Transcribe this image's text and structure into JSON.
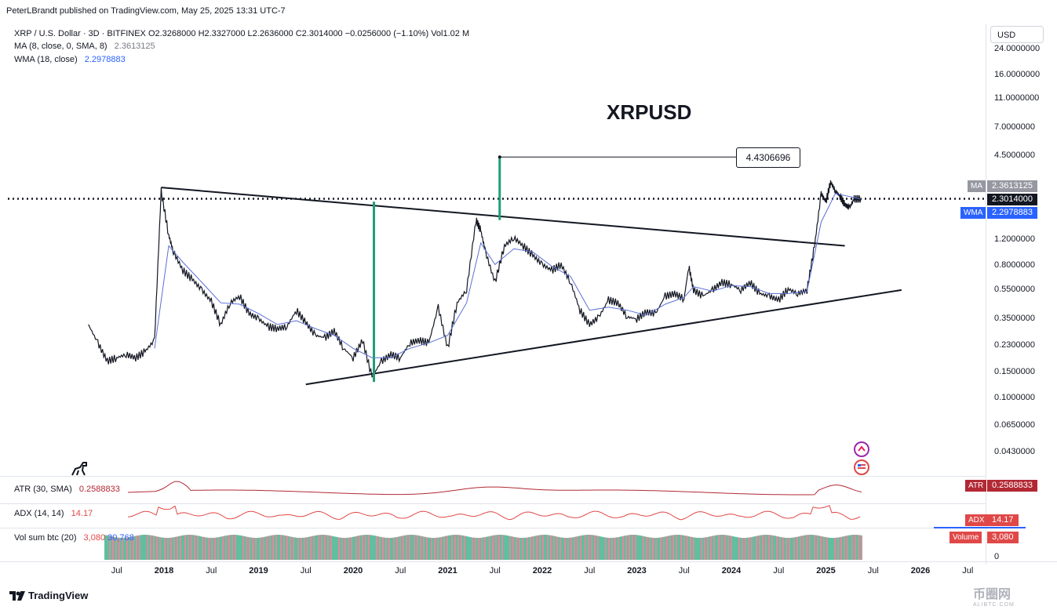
{
  "header": {
    "published": "PeterLBrandt published on TradingView.com, May 25, 2025 13:31 UTC-7"
  },
  "legend": {
    "symbol": "XRP / U.S. Dollar · 3D · BITFINEX",
    "ohlc": "O2.3268000  H2.3327000  L2.2636000  C2.3014000  −0.0256000 (−1.10%)  Vol1.02 M",
    "ma_label": "MA (8, close, 0, SMA, 8)",
    "ma_value": "2.3613125",
    "wma_label": "WMA (18, close)",
    "wma_value": "2.2978883"
  },
  "currency_button": "USD",
  "price_tags": {
    "ma_tag": "MA",
    "ma_value": "2.3613125",
    "close_value": "2.3014000",
    "wma_tag": "WMA",
    "wma_value": "2.2978883"
  },
  "measure_label": "4.4306696",
  "indicators": {
    "atr_label": "ATR (30, SMA)",
    "atr_value": "0.2588833",
    "atr_tag": "ATR",
    "adx_label": "ADX (14, 14)",
    "adx_value": "14.17",
    "adx_tag": "ADX",
    "vol_label": "Vol sum btc (20)",
    "vol_value1": "3,080",
    "vol_value2": "30,768",
    "vol_tag": "Volume",
    "vol_tag_value": "3,080",
    "vol_axis_zero": "0"
  },
  "footer": {
    "brand": "TradingView"
  },
  "watermark": {
    "main": "币圈网",
    "sub": "ALIBTC.COM"
  },
  "colors": {
    "price": "#131722",
    "wma": "#5b6fd6",
    "atr": "#b22833",
    "adx": "#e04848",
    "green_line": "#1f9e77",
    "volume_green": "#5fbfa0",
    "volume_red": "#e08a9a"
  },
  "chart_data": {
    "type": "line",
    "title": "XRPUSD",
    "scale": "log",
    "y_ticks": [
      "24.0000000",
      "16.0000000",
      "11.0000000",
      "7.0000000",
      "4.5000000",
      "1.2000000",
      "0.8000000",
      "0.5500000",
      "0.3500000",
      "0.2300000",
      "0.1500000",
      "0.1000000",
      "0.0650000",
      "0.0430000"
    ],
    "y_tick_values": [
      24,
      16,
      11,
      7,
      4.5,
      1.2,
      0.8,
      0.55,
      0.35,
      0.23,
      0.15,
      0.1,
      0.065,
      0.043
    ],
    "x_ticks": [
      {
        "label": "Jul",
        "t": 2017.5,
        "year": false
      },
      {
        "label": "2018",
        "t": 2018.0,
        "year": true
      },
      {
        "label": "Jul",
        "t": 2018.5,
        "year": false
      },
      {
        "label": "2019",
        "t": 2019.0,
        "year": true
      },
      {
        "label": "Jul",
        "t": 2019.5,
        "year": false
      },
      {
        "label": "2020",
        "t": 2020.0,
        "year": true
      },
      {
        "label": "Jul",
        "t": 2020.5,
        "year": false
      },
      {
        "label": "2021",
        "t": 2021.0,
        "year": true
      },
      {
        "label": "Jul",
        "t": 2021.5,
        "year": false
      },
      {
        "label": "2022",
        "t": 2022.0,
        "year": true
      },
      {
        "label": "Jul",
        "t": 2022.5,
        "year": false
      },
      {
        "label": "2023",
        "t": 2023.0,
        "year": true
      },
      {
        "label": "Jul",
        "t": 2023.5,
        "year": false
      },
      {
        "label": "2024",
        "t": 2024.0,
        "year": true
      },
      {
        "label": "Jul",
        "t": 2024.5,
        "year": false
      },
      {
        "label": "2025",
        "t": 2025.0,
        "year": true
      },
      {
        "label": "Jul",
        "t": 2025.5,
        "year": false
      },
      {
        "label": "2026",
        "t": 2026.0,
        "year": true
      },
      {
        "label": "Jul",
        "t": 2026.5,
        "year": false
      }
    ],
    "price_series": [
      [
        2017.2,
        0.32
      ],
      [
        2017.3,
        0.24
      ],
      [
        2017.4,
        0.18
      ],
      [
        2017.5,
        0.19
      ],
      [
        2017.6,
        0.2
      ],
      [
        2017.7,
        0.19
      ],
      [
        2017.8,
        0.21
      ],
      [
        2017.9,
        0.25
      ],
      [
        2017.97,
        2.6
      ],
      [
        2018.05,
        1.3
      ],
      [
        2018.1,
        1.0
      ],
      [
        2018.2,
        0.75
      ],
      [
        2018.3,
        0.65
      ],
      [
        2018.4,
        0.55
      ],
      [
        2018.5,
        0.46
      ],
      [
        2018.6,
        0.32
      ],
      [
        2018.7,
        0.45
      ],
      [
        2018.8,
        0.5
      ],
      [
        2018.9,
        0.38
      ],
      [
        2019.0,
        0.35
      ],
      [
        2019.1,
        0.31
      ],
      [
        2019.2,
        0.3
      ],
      [
        2019.3,
        0.31
      ],
      [
        2019.4,
        0.4
      ],
      [
        2019.5,
        0.33
      ],
      [
        2019.6,
        0.27
      ],
      [
        2019.7,
        0.26
      ],
      [
        2019.8,
        0.29
      ],
      [
        2019.9,
        0.22
      ],
      [
        2020.0,
        0.19
      ],
      [
        2020.1,
        0.25
      ],
      [
        2020.2,
        0.14
      ],
      [
        2020.3,
        0.18
      ],
      [
        2020.4,
        0.2
      ],
      [
        2020.5,
        0.19
      ],
      [
        2020.6,
        0.24
      ],
      [
        2020.7,
        0.25
      ],
      [
        2020.8,
        0.24
      ],
      [
        2020.9,
        0.42
      ],
      [
        2021.0,
        0.22
      ],
      [
        2021.1,
        0.45
      ],
      [
        2021.2,
        0.55
      ],
      [
        2021.3,
        1.65
      ],
      [
        2021.35,
        1.4
      ],
      [
        2021.4,
        1.0
      ],
      [
        2021.5,
        0.62
      ],
      [
        2021.6,
        1.1
      ],
      [
        2021.7,
        1.25
      ],
      [
        2021.8,
        1.1
      ],
      [
        2021.9,
        0.95
      ],
      [
        2022.0,
        0.82
      ],
      [
        2022.1,
        0.75
      ],
      [
        2022.2,
        0.82
      ],
      [
        2022.3,
        0.62
      ],
      [
        2022.4,
        0.4
      ],
      [
        2022.5,
        0.32
      ],
      [
        2022.6,
        0.36
      ],
      [
        2022.7,
        0.47
      ],
      [
        2022.8,
        0.45
      ],
      [
        2022.9,
        0.36
      ],
      [
        2023.0,
        0.35
      ],
      [
        2023.1,
        0.39
      ],
      [
        2023.2,
        0.38
      ],
      [
        2023.3,
        0.5
      ],
      [
        2023.4,
        0.52
      ],
      [
        2023.5,
        0.48
      ],
      [
        2023.55,
        0.8
      ],
      [
        2023.6,
        0.55
      ],
      [
        2023.7,
        0.5
      ],
      [
        2023.8,
        0.55
      ],
      [
        2023.9,
        0.62
      ],
      [
        2024.0,
        0.6
      ],
      [
        2024.1,
        0.55
      ],
      [
        2024.2,
        0.62
      ],
      [
        2024.3,
        0.52
      ],
      [
        2024.4,
        0.5
      ],
      [
        2024.5,
        0.47
      ],
      [
        2024.6,
        0.56
      ],
      [
        2024.7,
        0.52
      ],
      [
        2024.8,
        0.55
      ],
      [
        2024.88,
        1.1
      ],
      [
        2024.95,
        2.5
      ],
      [
        2025.0,
        2.2
      ],
      [
        2025.05,
        3.0
      ],
      [
        2025.1,
        2.6
      ],
      [
        2025.15,
        2.4
      ],
      [
        2025.2,
        2.1
      ],
      [
        2025.25,
        2.0
      ],
      [
        2025.3,
        2.3
      ],
      [
        2025.37,
        2.3
      ]
    ],
    "wma_series": [
      [
        2017.9,
        0.22
      ],
      [
        2018.05,
        1.1
      ],
      [
        2018.2,
        0.85
      ],
      [
        2018.4,
        0.62
      ],
      [
        2018.6,
        0.45
      ],
      [
        2018.8,
        0.44
      ],
      [
        2019.0,
        0.38
      ],
      [
        2019.2,
        0.32
      ],
      [
        2019.4,
        0.34
      ],
      [
        2019.6,
        0.3
      ],
      [
        2019.8,
        0.27
      ],
      [
        2020.0,
        0.22
      ],
      [
        2020.2,
        0.19
      ],
      [
        2020.4,
        0.19
      ],
      [
        2020.6,
        0.22
      ],
      [
        2020.8,
        0.24
      ],
      [
        2021.0,
        0.27
      ],
      [
        2021.2,
        0.45
      ],
      [
        2021.35,
        1.15
      ],
      [
        2021.5,
        0.82
      ],
      [
        2021.7,
        1.05
      ],
      [
        2021.9,
        1.0
      ],
      [
        2022.1,
        0.8
      ],
      [
        2022.3,
        0.68
      ],
      [
        2022.5,
        0.4
      ],
      [
        2022.7,
        0.42
      ],
      [
        2022.9,
        0.4
      ],
      [
        2023.1,
        0.37
      ],
      [
        2023.3,
        0.44
      ],
      [
        2023.5,
        0.49
      ],
      [
        2023.6,
        0.58
      ],
      [
        2023.8,
        0.54
      ],
      [
        2024.0,
        0.59
      ],
      [
        2024.2,
        0.58
      ],
      [
        2024.4,
        0.52
      ],
      [
        2024.6,
        0.52
      ],
      [
        2024.8,
        0.54
      ],
      [
        2024.95,
        1.6
      ],
      [
        2025.1,
        2.5
      ],
      [
        2025.37,
        2.2979
      ]
    ],
    "trendline_upper": [
      [
        2017.97,
        2.75
      ],
      [
        2025.2,
        1.1
      ]
    ],
    "trendline_lower": [
      [
        2019.5,
        0.125
      ],
      [
        2025.8,
        0.55
      ]
    ],
    "last_close": 2.3014,
    "measured_move": {
      "from": [
        2020.22,
        2.2
      ],
      "to": [
        2020.22,
        0.13
      ],
      "projection_from": [
        2021.55,
        1.65
      ],
      "projection_to": [
        2021.55,
        4.4306696
      ],
      "label": "4.4306696"
    }
  }
}
